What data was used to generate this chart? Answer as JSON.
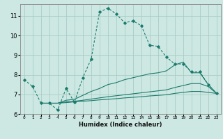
{
  "xlabel": "Humidex (Indice chaleur)",
  "background_color": "#cde8e2",
  "grid_color": "#aaccc6",
  "line_color": "#1a7a6e",
  "xlim": [
    -0.5,
    23.5
  ],
  "ylim": [
    6,
    11.6
  ],
  "yticks": [
    6,
    7,
    8,
    9,
    10,
    11
  ],
  "xticks": [
    0,
    1,
    2,
    3,
    4,
    5,
    6,
    7,
    8,
    9,
    10,
    11,
    12,
    13,
    14,
    15,
    16,
    17,
    18,
    19,
    20,
    21,
    22,
    23
  ],
  "line1_x": [
    0,
    1,
    2,
    3,
    4,
    5,
    6,
    7,
    8,
    9,
    10,
    11,
    12,
    13,
    14,
    15,
    16,
    17,
    18,
    19,
    20,
    21,
    22,
    23
  ],
  "line1_y": [
    7.75,
    7.4,
    6.55,
    6.55,
    6.2,
    7.3,
    6.6,
    7.85,
    8.8,
    11.2,
    11.4,
    11.1,
    10.65,
    10.75,
    10.5,
    9.5,
    9.45,
    8.9,
    8.55,
    8.55,
    8.15,
    8.15,
    7.5,
    7.05
  ],
  "line2_x": [
    2,
    3,
    4,
    5,
    6,
    7,
    8,
    9,
    10,
    11,
    12,
    13,
    14,
    15,
    16,
    17,
    18,
    19,
    20,
    21,
    22,
    23
  ],
  "line2_y": [
    6.55,
    6.55,
    6.55,
    6.7,
    6.75,
    6.95,
    7.15,
    7.3,
    7.5,
    7.6,
    7.75,
    7.85,
    7.95,
    8.05,
    8.1,
    8.2,
    8.5,
    8.65,
    8.1,
    8.1,
    7.5,
    7.05
  ],
  "line3_x": [
    2,
    3,
    4,
    5,
    6,
    7,
    8,
    9,
    10,
    11,
    12,
    13,
    14,
    15,
    16,
    17,
    18,
    19,
    20,
    21,
    22,
    23
  ],
  "line3_y": [
    6.55,
    6.55,
    6.55,
    6.62,
    6.65,
    6.7,
    6.76,
    6.82,
    6.88,
    6.93,
    6.98,
    7.03,
    7.08,
    7.13,
    7.18,
    7.23,
    7.35,
    7.45,
    7.55,
    7.55,
    7.4,
    7.05
  ],
  "line4_x": [
    2,
    3,
    4,
    5,
    6,
    7,
    8,
    9,
    10,
    11,
    12,
    13,
    14,
    15,
    16,
    17,
    18,
    19,
    20,
    21,
    22,
    23
  ],
  "line4_y": [
    6.55,
    6.55,
    6.55,
    6.58,
    6.62,
    6.65,
    6.68,
    6.72,
    6.75,
    6.78,
    6.82,
    6.85,
    6.88,
    6.92,
    6.95,
    6.98,
    7.05,
    7.1,
    7.15,
    7.15,
    7.1,
    7.05
  ]
}
